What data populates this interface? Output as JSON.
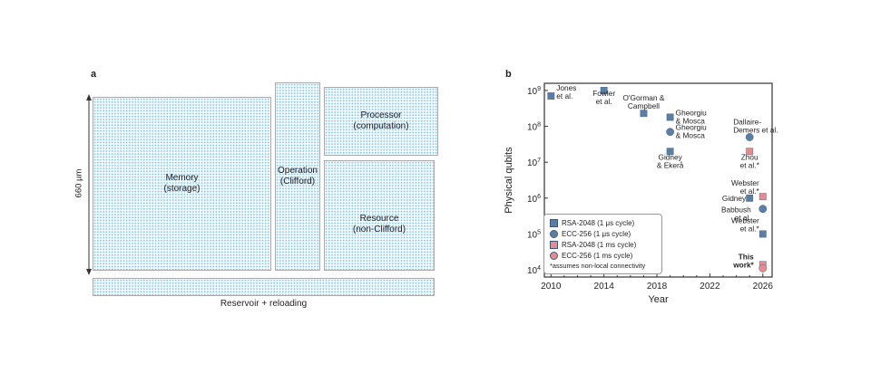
{
  "panel_a": {
    "letter": "a",
    "dimension_label": "660 µm",
    "blocks": {
      "memory": [
        "Memory",
        "(storage)"
      ],
      "operation": [
        "Operation",
        "(Clifford)"
      ],
      "processor": [
        "Processor",
        "(computation)"
      ],
      "resource": [
        "Resource",
        "(non-Clifford)"
      ],
      "reservoir": [
        "Reservoir + reloading"
      ]
    }
  },
  "panel_b": {
    "letter": "b",
    "legend_items": [
      {
        "label": "RSA-2048 (1 μs cycle)",
        "marker": "square",
        "color": "#5b7ea4"
      },
      {
        "label": "ECC-256 (1 μs cycle)",
        "marker": "circle",
        "color": "#5b7ea4"
      },
      {
        "label": "RSA-2048 (1 ms cycle)",
        "marker": "square",
        "color": "#e98a90"
      },
      {
        "label": "ECC-256 (1 ms cycle)",
        "marker": "circle",
        "color": "#e98a90"
      }
    ],
    "legend_note": "*assumes non-local connectivity"
  },
  "chart_data": {
    "type": "scatter",
    "xlabel": "Year",
    "ylabel": "Physical qubits",
    "xlim": [
      2009.5,
      2026.7
    ],
    "ylim_log10": [
      3.8,
      9.2
    ],
    "y_scale": "log",
    "x_ticks": [
      2010,
      2014,
      2018,
      2022,
      2026
    ],
    "y_ticks": [
      {
        "value": 10000,
        "base": "10",
        "exp": "4"
      },
      {
        "value": 100000,
        "base": "10",
        "exp": "5"
      },
      {
        "value": 1000000,
        "base": "10",
        "exp": "6"
      },
      {
        "value": 10000000,
        "base": "10",
        "exp": "7"
      },
      {
        "value": 100000000,
        "base": "10",
        "exp": "8"
      },
      {
        "value": 1000000000,
        "base": "10",
        "exp": "9"
      }
    ],
    "series": [
      {
        "name": "RSA-2048 (1 μs cycle)",
        "marker": "square",
        "color": "#5b7ea4",
        "points": [
          {
            "x": 2010,
            "y": 700000000,
            "label": [
              "Jones",
              "et al."
            ]
          },
          {
            "x": 2014,
            "y": 1000000000,
            "label": [
              "Fowler",
              "et al."
            ]
          },
          {
            "x": 2017,
            "y": 230000000,
            "label": [
              "O'Gorman &",
              "Campbell"
            ]
          },
          {
            "x": 2019,
            "y": 180000000,
            "label": [
              "Gheorgiu",
              "& Mosca"
            ]
          },
          {
            "x": 2019,
            "y": 20000000,
            "label": [
              "Gidney",
              "& Ekerå"
            ]
          },
          {
            "x": 2025,
            "y": 1000000,
            "label": [
              "Gidney"
            ]
          },
          {
            "x": 2026,
            "y": 100000,
            "label": [
              "Webster",
              "et al.*"
            ]
          }
        ]
      },
      {
        "name": "ECC-256 (1 μs cycle)",
        "marker": "circle",
        "color": "#5b7ea4",
        "points": [
          {
            "x": 2019,
            "y": 70000000,
            "label": [
              "Gheorgiu",
              "& Mosca"
            ]
          },
          {
            "x": 2025,
            "y": 50000000,
            "label": [
              "Dallaire-",
              "Demers et al."
            ]
          },
          {
            "x": 2026,
            "y": 500000,
            "label": [
              "Babbush",
              "et al."
            ]
          }
        ]
      },
      {
        "name": "RSA-2048 (1 ms cycle)",
        "marker": "square",
        "color": "#e98a90",
        "points": [
          {
            "x": 2025,
            "y": 20000000,
            "label": [
              "Zhou",
              "et al.*"
            ]
          },
          {
            "x": 2026,
            "y": 1100000,
            "label": [
              "Webster",
              "et al.*"
            ]
          },
          {
            "x": 2026,
            "y": 14000,
            "label": []
          }
        ]
      },
      {
        "name": "ECC-256 (1 ms cycle)",
        "marker": "circle",
        "color": "#e98a90",
        "points": [
          {
            "x": 2026,
            "y": 11000,
            "label": []
          }
        ]
      }
    ],
    "annotation": [
      "This",
      "work*"
    ]
  }
}
